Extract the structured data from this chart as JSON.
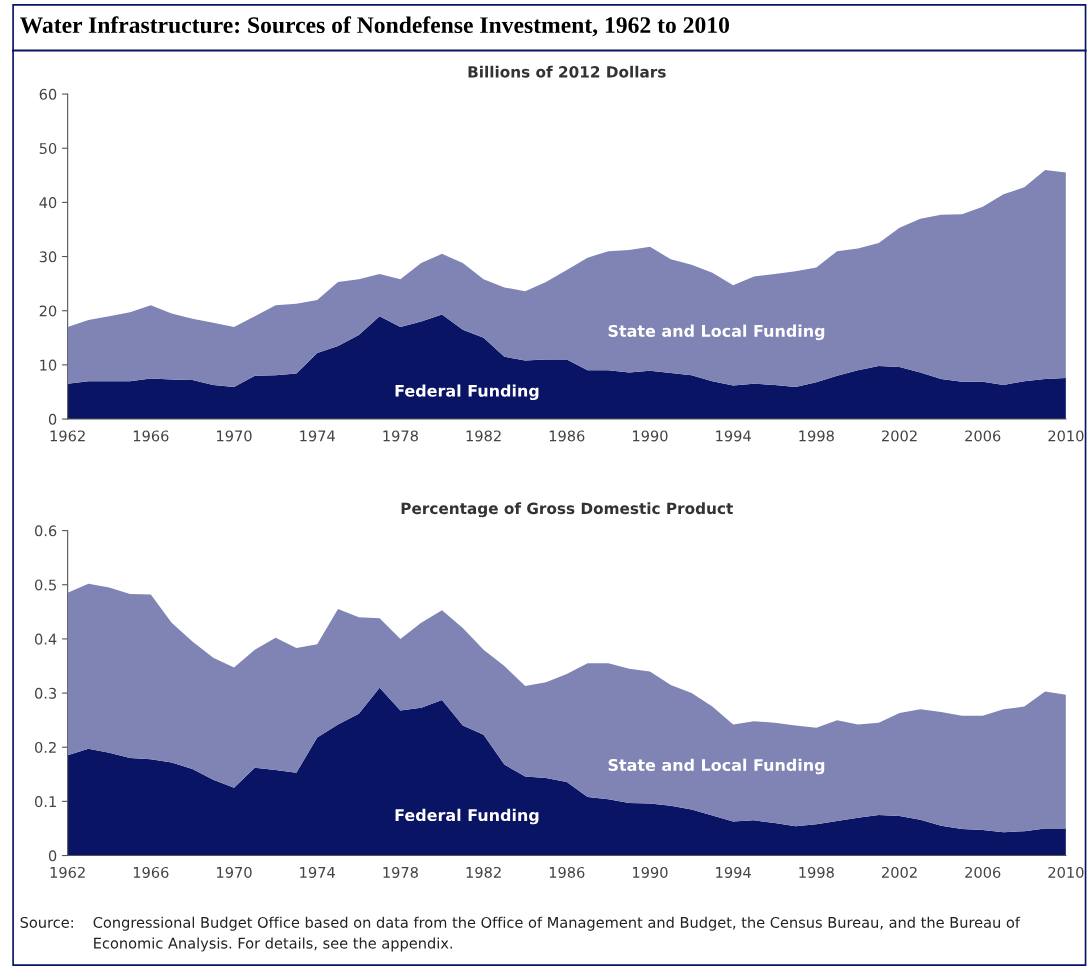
{
  "chart_data": [
    {
      "type": "area",
      "stacked": true,
      "title": "Water Infrastructure: Sources of Nondefense Investment, 1962 to 2010",
      "subtitle": "Billions of 2012 Dollars",
      "x": [
        1962,
        1963,
        1964,
        1965,
        1966,
        1967,
        1968,
        1969,
        1970,
        1971,
        1972,
        1973,
        1974,
        1975,
        1976,
        1977,
        1978,
        1979,
        1980,
        1981,
        1982,
        1983,
        1984,
        1985,
        1986,
        1987,
        1988,
        1989,
        1990,
        1991,
        1992,
        1993,
        1994,
        1995,
        1996,
        1997,
        1998,
        1999,
        2000,
        2001,
        2002,
        2003,
        2004,
        2005,
        2006,
        2007,
        2008,
        2009,
        2010
      ],
      "series": [
        {
          "name": "Federal Funding",
          "color": "#0a1464",
          "values": [
            6.5,
            7,
            7,
            7,
            7.5,
            7.3,
            7.2,
            6.3,
            5.9,
            8,
            8.1,
            8.4,
            12.2,
            13.5,
            15.5,
            19,
            17,
            18,
            19.3,
            16.5,
            15,
            11.5,
            10.8,
            11,
            11,
            9,
            9,
            8.6,
            8.9,
            8.5,
            8.1,
            7,
            6.2,
            6.5,
            6.3,
            5.9,
            6.8,
            8,
            9,
            9.8,
            9.6,
            8.6,
            7.4,
            6.9,
            6.9,
            6.3,
            7,
            7.4,
            7.6
          ]
        },
        {
          "name": "State and Local Funding",
          "color": "#8084b4",
          "values": [
            10.5,
            11.3,
            12,
            12.7,
            13.5,
            12.2,
            11.3,
            11.5,
            11.1,
            11,
            12.9,
            12.9,
            9.8,
            11.8,
            10.3,
            7.8,
            8.8,
            10.8,
            11.2,
            12.3,
            10.8,
            12.8,
            12.8,
            14.3,
            16.5,
            20.8,
            22,
            22.6,
            22.9,
            21,
            20.4,
            20,
            18.5,
            19.8,
            20.5,
            21.4,
            21.2,
            23,
            22.5,
            22.7,
            25.7,
            28.4,
            30.3,
            30.9,
            32.3,
            35.2,
            35.8,
            38.6,
            37.9
          ]
        }
      ],
      "xlim": [
        1962,
        2010
      ],
      "xticks": [
        1962,
        1966,
        1970,
        1974,
        1978,
        1982,
        1986,
        1990,
        1994,
        1998,
        2002,
        2006,
        2010
      ],
      "ylim": [
        0,
        60
      ],
      "yticks": [
        0,
        10,
        20,
        30,
        40,
        50,
        60
      ],
      "grid": false,
      "legend": false
    },
    {
      "type": "area",
      "stacked": true,
      "subtitle": "Percentage of Gross Domestic Product",
      "x": [
        1962,
        1963,
        1964,
        1965,
        1966,
        1967,
        1968,
        1969,
        1970,
        1971,
        1972,
        1973,
        1974,
        1975,
        1976,
        1977,
        1978,
        1979,
        1980,
        1981,
        1982,
        1983,
        1984,
        1985,
        1986,
        1987,
        1988,
        1989,
        1990,
        1991,
        1992,
        1993,
        1994,
        1995,
        1996,
        1997,
        1998,
        1999,
        2000,
        2001,
        2002,
        2003,
        2004,
        2005,
        2006,
        2007,
        2008,
        2009,
        2010
      ],
      "series": [
        {
          "name": "Federal Funding",
          "color": "#0a1464",
          "values": [
            0.185,
            0.197,
            0.19,
            0.18,
            0.178,
            0.172,
            0.16,
            0.14,
            0.125,
            0.162,
            0.158,
            0.153,
            0.218,
            0.242,
            0.262,
            0.31,
            0.268,
            0.273,
            0.287,
            0.24,
            0.223,
            0.168,
            0.146,
            0.143,
            0.136,
            0.108,
            0.104,
            0.097,
            0.096,
            0.092,
            0.085,
            0.074,
            0.063,
            0.065,
            0.06,
            0.054,
            0.058,
            0.064,
            0.07,
            0.075,
            0.073,
            0.066,
            0.055,
            0.049,
            0.047,
            0.043,
            0.045,
            0.05,
            0.05
          ]
        },
        {
          "name": "State and Local Funding",
          "color": "#8084b4",
          "values": [
            0.3,
            0.305,
            0.305,
            0.303,
            0.304,
            0.258,
            0.235,
            0.225,
            0.222,
            0.218,
            0.244,
            0.23,
            0.172,
            0.213,
            0.178,
            0.128,
            0.132,
            0.157,
            0.166,
            0.18,
            0.157,
            0.182,
            0.167,
            0.177,
            0.199,
            0.247,
            0.251,
            0.248,
            0.244,
            0.223,
            0.215,
            0.201,
            0.179,
            0.183,
            0.185,
            0.186,
            0.178,
            0.186,
            0.172,
            0.17,
            0.19,
            0.204,
            0.21,
            0.209,
            0.211,
            0.227,
            0.23,
            0.253,
            0.247
          ]
        }
      ],
      "xlim": [
        1962,
        2010
      ],
      "xticks": [
        1962,
        1966,
        1970,
        1974,
        1978,
        1982,
        1986,
        1990,
        1994,
        1998,
        2002,
        2006,
        2010
      ],
      "ylim": [
        0,
        0.6
      ],
      "yticks": [
        0,
        0.1,
        0.2,
        0.3,
        0.4,
        0.5,
        0.6
      ],
      "grid": false,
      "legend": false,
      "annotations": [
        "Source: Congressional Budget Office based on data from the Office of Management and Budget, the Census Bureau, and the Bureau of Economic Analysis. For details, see the appendix."
      ]
    }
  ]
}
